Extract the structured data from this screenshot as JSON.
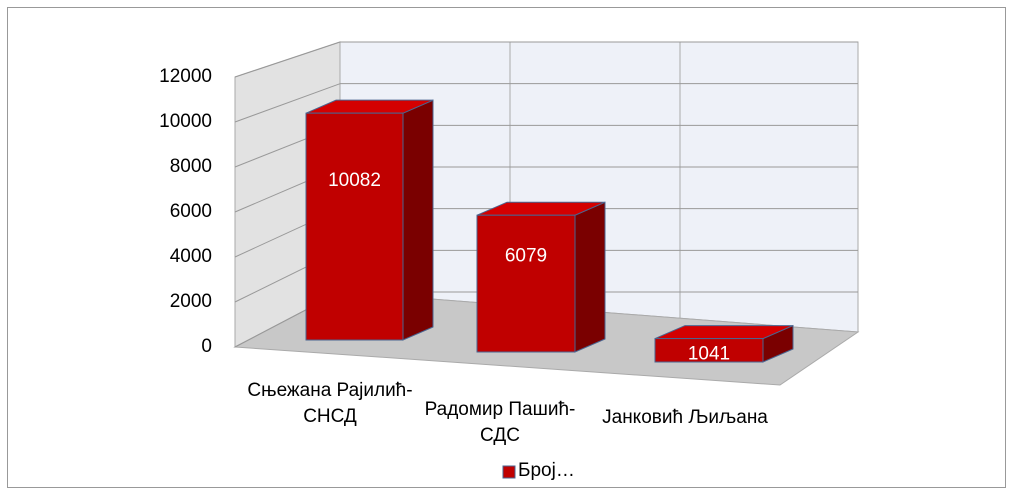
{
  "chart_data": {
    "type": "bar3d",
    "categories": [
      "Сњежана Рајилић-СНСД",
      "Радомир Пашић-СДС",
      "Јанковић Љиљана"
    ],
    "series": [
      {
        "name": "Број…",
        "color": "#c00000",
        "values": [
          10082,
          6079,
          1041
        ]
      }
    ],
    "ylim": [
      0,
      12000
    ],
    "yticks": [
      0,
      2000,
      4000,
      6000,
      8000,
      10000,
      12000
    ],
    "grid": true,
    "legend": "bottom"
  }
}
